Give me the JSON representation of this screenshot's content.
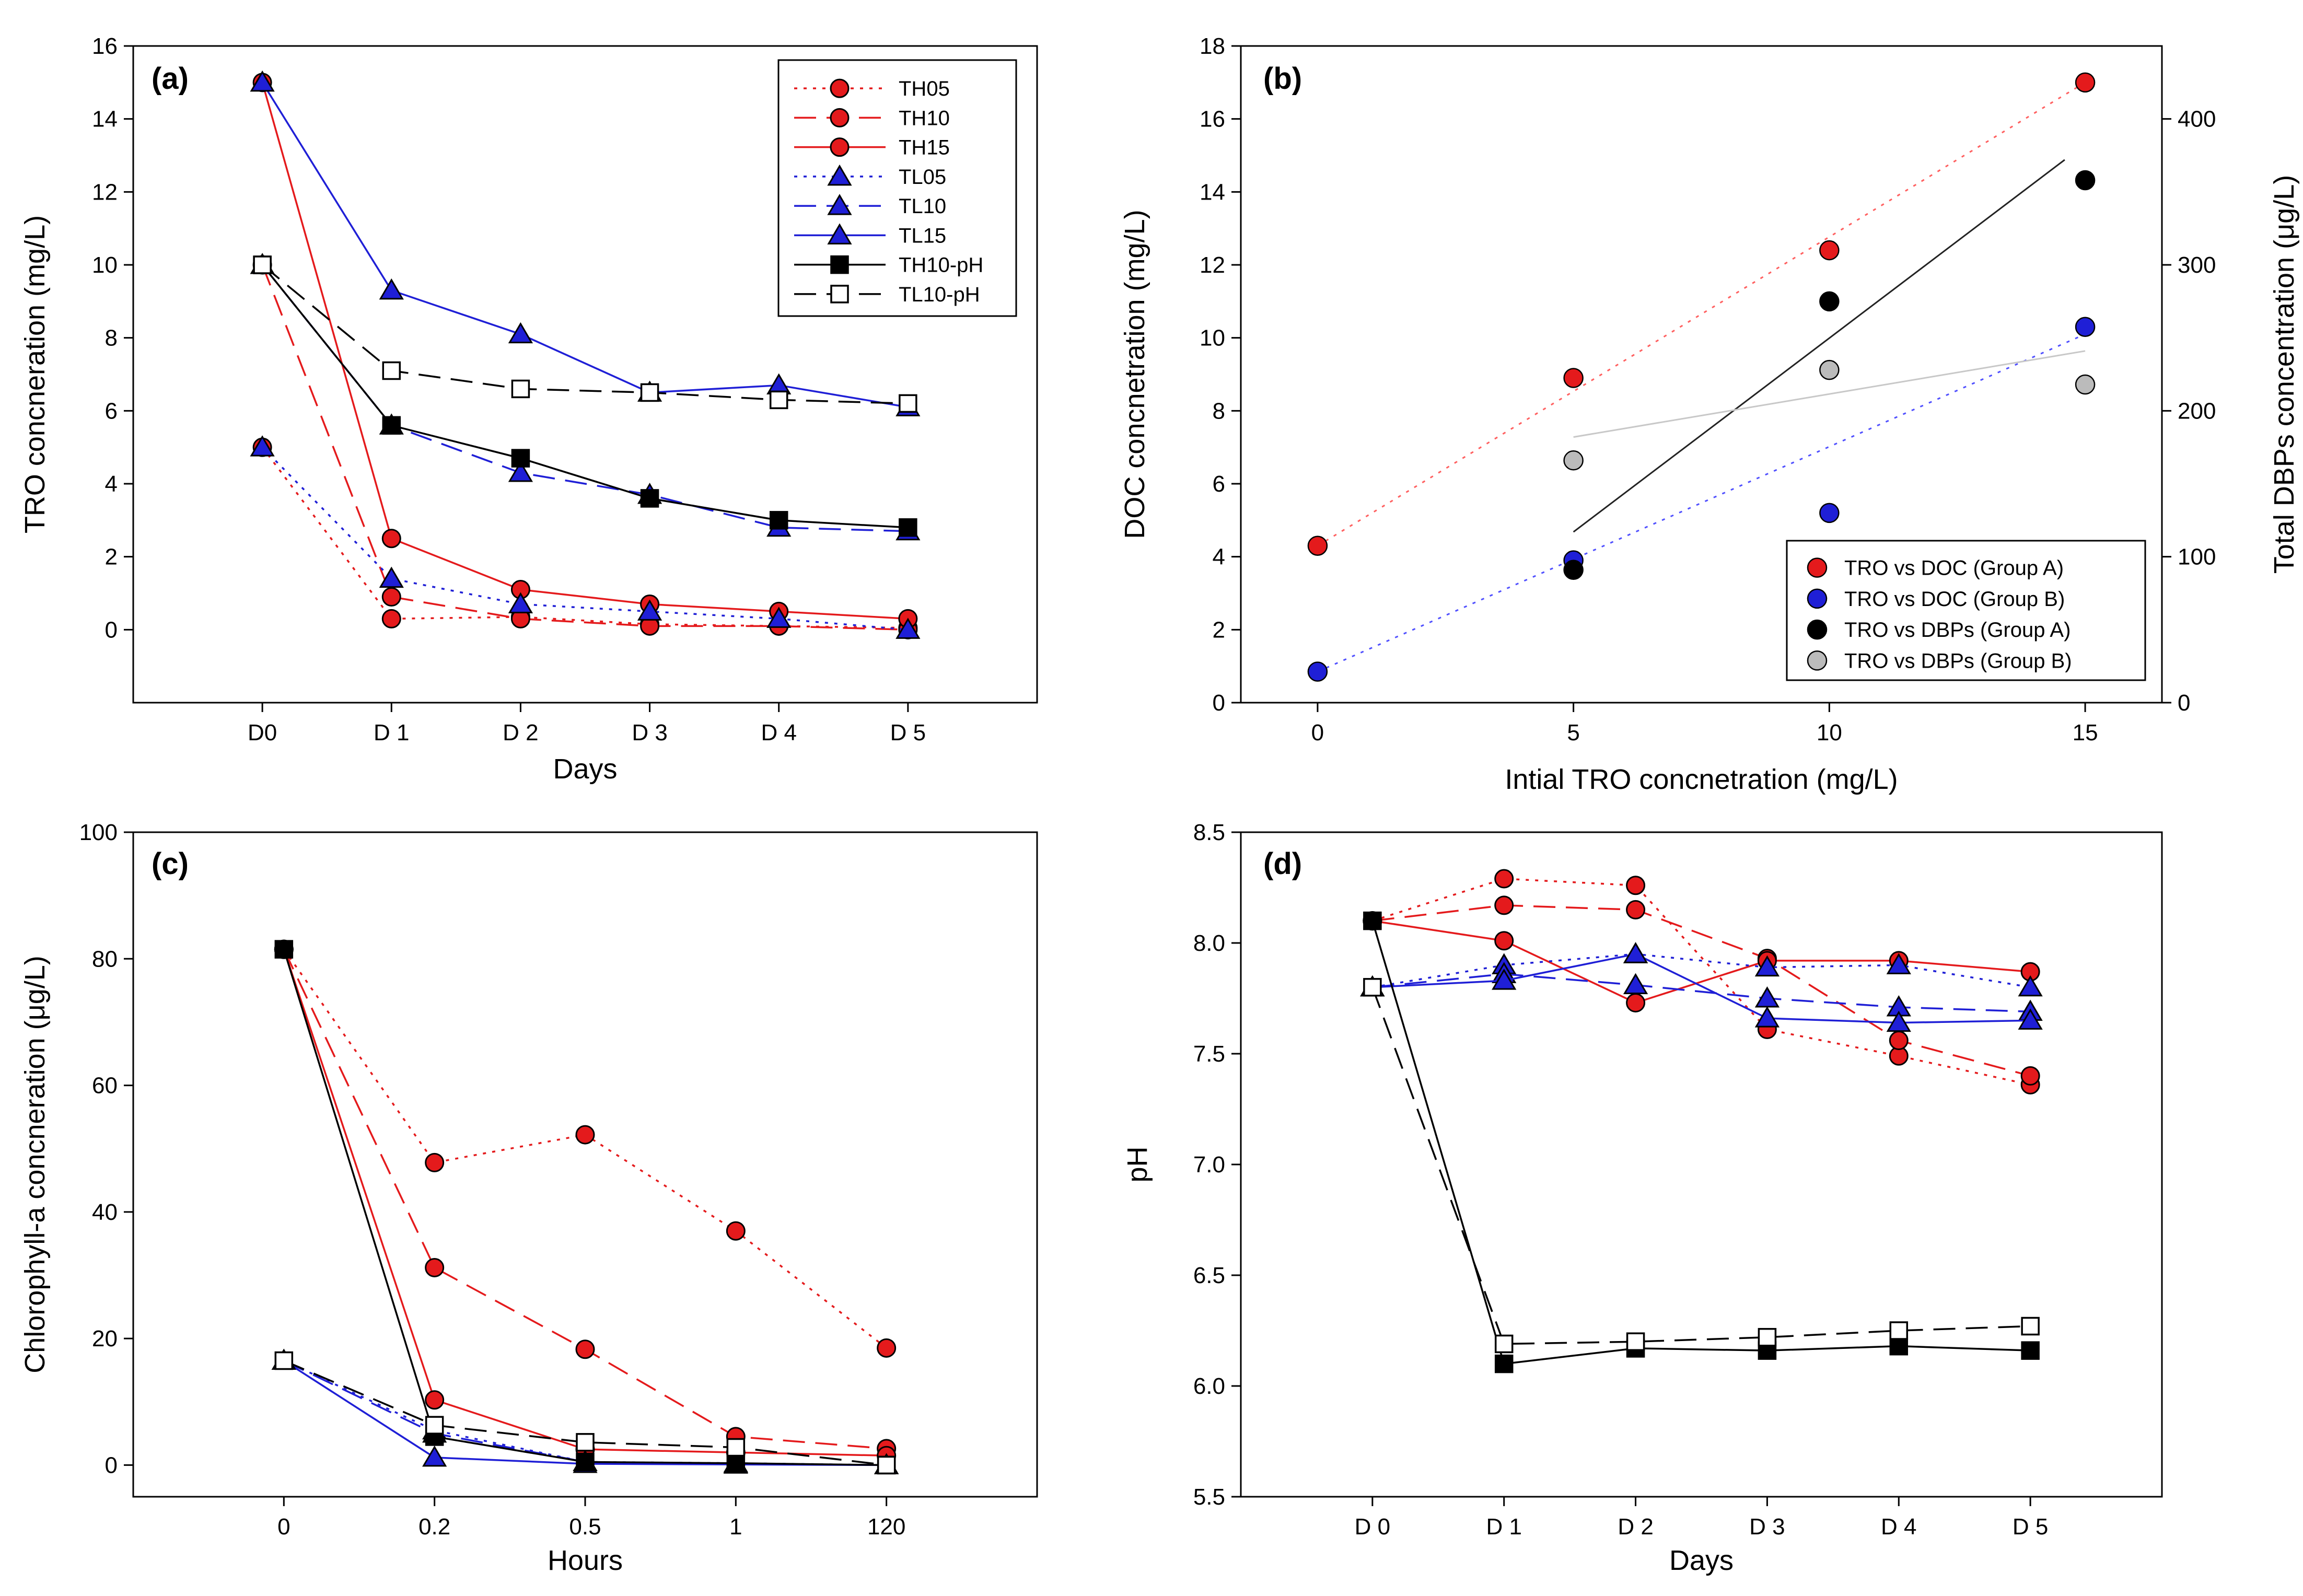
{
  "chart_data": [
    {
      "id": "a",
      "type": "line",
      "panel_label": "(a)",
      "xlabel": "Days",
      "ylabel": "TRO concneration (mg/L)",
      "categories": [
        "D0",
        "D 1",
        "D 2",
        "D 3",
        "D 4",
        "D 5"
      ],
      "ylim": [
        -2,
        16
      ],
      "yticks": [
        "0",
        "2",
        "4",
        "6",
        "8",
        "10",
        "12",
        "14",
        "16"
      ],
      "legend_position": "top-right",
      "series": [
        {
          "name": "TH05",
          "color": "#e41a1c",
          "dash": "dotted",
          "marker": "circle",
          "fill": "#e41a1c",
          "values": [
            5,
            0.3,
            0.35,
            0.15,
            0.1,
            0.05
          ]
        },
        {
          "name": "TH10",
          "color": "#e41a1c",
          "dash": "dashed",
          "marker": "circle",
          "fill": "#e41a1c",
          "values": [
            10,
            0.9,
            0.3,
            0.1,
            0.1,
            0
          ]
        },
        {
          "name": "TH15",
          "color": "#e41a1c",
          "dash": "solid",
          "marker": "circle",
          "fill": "#e41a1c",
          "values": [
            15,
            2.5,
            1.1,
            0.7,
            0.5,
            0.3
          ]
        },
        {
          "name": "TL05",
          "color": "#1f1fd6",
          "dash": "dotted",
          "marker": "triangle",
          "fill": "#1f1fd6",
          "values": [
            5,
            1.4,
            0.7,
            0.5,
            0.3,
            0
          ]
        },
        {
          "name": "TL10",
          "color": "#1f1fd6",
          "dash": "dashed",
          "marker": "triangle",
          "fill": "#1f1fd6",
          "values": [
            10,
            5.6,
            4.3,
            3.7,
            2.8,
            2.7
          ]
        },
        {
          "name": "TL15",
          "color": "#1f1fd6",
          "dash": "solid",
          "marker": "triangle",
          "fill": "#1f1fd6",
          "values": [
            15,
            9.3,
            8.1,
            6.5,
            6.7,
            6.1
          ]
        },
        {
          "name": "TH10-pH",
          "color": "#000000",
          "dash": "solid",
          "marker": "square",
          "fill": "#000000",
          "values": [
            10,
            5.6,
            4.7,
            3.6,
            3.0,
            2.8
          ]
        },
        {
          "name": "TL10-pH",
          "color": "#000000",
          "dash": "dashed",
          "marker": "square",
          "fill": "#ffffff",
          "values": [
            10,
            7.1,
            6.6,
            6.5,
            6.3,
            6.2
          ]
        }
      ]
    },
    {
      "id": "b",
      "type": "scatter",
      "panel_label": "(b)",
      "xlabel": "Intial TRO concnetration (mg/L)",
      "ylabel": "DOC concnetration (mg/L)",
      "y2label": "Total DBPs concentration (μg/L)",
      "xlim": [
        -1.5,
        16.5
      ],
      "xticks": [
        "0",
        "5",
        "10",
        "15"
      ],
      "ylim": [
        0,
        18
      ],
      "yticks": [
        "0",
        "2",
        "4",
        "6",
        "8",
        "10",
        "12",
        "14",
        "16",
        "18"
      ],
      "y2lim": [
        0,
        450
      ],
      "y2ticks": [
        "0",
        "100",
        "200",
        "300",
        "400"
      ],
      "legend_position": "bottom-right",
      "series": [
        {
          "name": "TRO vs DOC (Group A)",
          "axis": "left",
          "color": "#e41a1c",
          "x": [
            0,
            5,
            10,
            15
          ],
          "y": [
            4.3,
            8.9,
            12.4,
            17.0
          ],
          "fit": {
            "x": [
              0,
              15
            ],
            "y": [
              4.3,
              17.0
            ],
            "color": "#ff6060",
            "dash": "dotted"
          }
        },
        {
          "name": "TRO vs DOC (Group B)",
          "axis": "left",
          "color": "#1f1fd6",
          "x": [
            0,
            5,
            10,
            15
          ],
          "y": [
            0.85,
            3.9,
            5.2,
            10.3
          ],
          "fit": {
            "x": [
              0,
              15
            ],
            "y": [
              0.85,
              10.1
            ],
            "color": "#5050ff",
            "dash": "dotted"
          }
        },
        {
          "name": "TRO vs DBPs (Group A)",
          "axis": "right",
          "color": "#000000",
          "x": [
            5,
            10,
            15
          ],
          "y": [
            91,
            275,
            358
          ],
          "fit": {
            "x": [
              5,
              14.6
            ],
            "y": [
              117,
              372
            ],
            "color": "#222222",
            "dash": "solid"
          }
        },
        {
          "name": "TRO vs DBPs (Group B)",
          "axis": "right",
          "color": "#bbbbbb",
          "x": [
            5,
            10,
            15
          ],
          "y": [
            166,
            228,
            218
          ],
          "fit": {
            "x": [
              5,
              15
            ],
            "y": [
              182,
              241
            ],
            "color": "#c8c8c8",
            "dash": "solid"
          }
        }
      ]
    },
    {
      "id": "c",
      "type": "line",
      "panel_label": "(c)",
      "xlabel": "Hours",
      "ylabel": "Chlorophyll-a concneration (μg/L)",
      "categories": [
        "0",
        "0.2",
        "0.5",
        "1",
        "120"
      ],
      "ylim": [
        -5,
        100
      ],
      "yticks": [
        "0",
        "20",
        "40",
        "60",
        "80",
        "100"
      ],
      "series": [
        {
          "name": "TH05",
          "color": "#e41a1c",
          "dash": "dotted",
          "marker": "circle",
          "fill": "#e41a1c",
          "values": [
            81.5,
            47.8,
            52.2,
            37.0,
            18.5
          ]
        },
        {
          "name": "TH10",
          "color": "#e41a1c",
          "dash": "dashed",
          "marker": "circle",
          "fill": "#e41a1c",
          "values": [
            81.5,
            31.2,
            18.3,
            4.5,
            2.6
          ]
        },
        {
          "name": "TH15",
          "color": "#e41a1c",
          "dash": "solid",
          "marker": "circle",
          "fill": "#e41a1c",
          "values": [
            81.5,
            10.3,
            2.5,
            2.0,
            1.5
          ]
        },
        {
          "name": "TL05",
          "color": "#1f1fd6",
          "dash": "dotted",
          "marker": "triangle",
          "fill": "#1f1fd6",
          "values": [
            16.5,
            5.5,
            0.5,
            0.3,
            0
          ]
        },
        {
          "name": "TL10",
          "color": "#1f1fd6",
          "dash": "dashed",
          "marker": "triangle",
          "fill": "#1f1fd6",
          "values": [
            16.5,
            5.0,
            0.5,
            0.2,
            0
          ]
        },
        {
          "name": "TL15",
          "color": "#1f1fd6",
          "dash": "solid",
          "marker": "triangle",
          "fill": "#1f1fd6",
          "values": [
            16.5,
            1.2,
            0.2,
            0.1,
            0
          ]
        },
        {
          "name": "TH10-pH",
          "color": "#000000",
          "dash": "solid",
          "marker": "square",
          "fill": "#000000",
          "values": [
            81.5,
            4.5,
            0.5,
            0.3,
            0
          ]
        },
        {
          "name": "TL10-pH",
          "color": "#000000",
          "dash": "dashed",
          "marker": "square",
          "fill": "#ffffff",
          "values": [
            16.5,
            6.3,
            3.6,
            2.8,
            0
          ]
        }
      ]
    },
    {
      "id": "d",
      "type": "line",
      "panel_label": "(d)",
      "xlabel": "Days",
      "ylabel": "pH",
      "categories": [
        "D 0",
        "D 1",
        "D 2",
        "D 3",
        "D 4",
        "D 5"
      ],
      "ylim": [
        5.5,
        8.5
      ],
      "yticks": [
        "5.5",
        "6.0",
        "6.5",
        "7.0",
        "7.5",
        "8.0",
        "8.5"
      ],
      "series": [
        {
          "name": "TH05",
          "color": "#e41a1c",
          "dash": "dotted",
          "marker": "circle",
          "fill": "#e41a1c",
          "values": [
            8.1,
            8.29,
            8.26,
            7.61,
            7.49,
            7.36
          ]
        },
        {
          "name": "TH10",
          "color": "#e41a1c",
          "dash": "dashed",
          "marker": "circle",
          "fill": "#e41a1c",
          "values": [
            8.1,
            8.17,
            8.15,
            7.93,
            7.56,
            7.4
          ]
        },
        {
          "name": "TH15",
          "color": "#e41a1c",
          "dash": "solid",
          "marker": "circle",
          "fill": "#e41a1c",
          "values": [
            8.1,
            8.01,
            7.73,
            7.92,
            7.92,
            7.87
          ]
        },
        {
          "name": "TL05",
          "color": "#1f1fd6",
          "dash": "dotted",
          "marker": "triangle",
          "fill": "#1f1fd6",
          "values": [
            7.8,
            7.9,
            7.95,
            7.89,
            7.9,
            7.8
          ]
        },
        {
          "name": "TL10",
          "color": "#1f1fd6",
          "dash": "dashed",
          "marker": "triangle",
          "fill": "#1f1fd6",
          "values": [
            7.8,
            7.86,
            7.81,
            7.75,
            7.71,
            7.69
          ]
        },
        {
          "name": "TL15",
          "color": "#1f1fd6",
          "dash": "solid",
          "marker": "triangle",
          "fill": "#1f1fd6",
          "values": [
            7.8,
            7.83,
            7.95,
            7.66,
            7.64,
            7.65
          ]
        },
        {
          "name": "TH10-pH",
          "color": "#000000",
          "dash": "solid",
          "marker": "square",
          "fill": "#000000",
          "values": [
            8.1,
            6.1,
            6.17,
            6.16,
            6.18,
            6.16
          ]
        },
        {
          "name": "TL10-pH",
          "color": "#000000",
          "dash": "dashed",
          "marker": "square",
          "fill": "#ffffff",
          "values": [
            7.8,
            6.19,
            6.2,
            6.22,
            6.25,
            6.27
          ]
        }
      ]
    }
  ]
}
